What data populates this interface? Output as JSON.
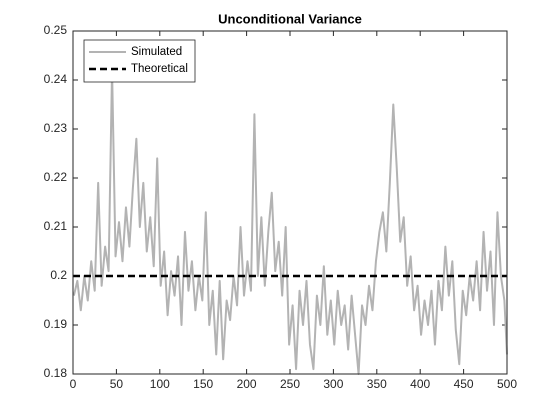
{
  "chart_data": {
    "type": "line",
    "title": "Unconditional Variance",
    "xlim": [
      0,
      500
    ],
    "ylim": [
      0.18,
      0.25
    ],
    "xticks": [
      0,
      50,
      100,
      150,
      200,
      250,
      300,
      350,
      400,
      450,
      500
    ],
    "yticks": [
      0.18,
      0.19,
      0.2,
      0.21,
      0.22,
      0.23,
      0.24,
      0.25
    ],
    "legend": "upper left",
    "series": [
      {
        "name": "Simulated",
        "color": "#b3b3b3",
        "style": "solid",
        "x": [
          1,
          5,
          9,
          13,
          17,
          21,
          25,
          29,
          33,
          37,
          41,
          45,
          49,
          53,
          57,
          61,
          65,
          69,
          73,
          77,
          81,
          85,
          89,
          93,
          97,
          101,
          105,
          109,
          113,
          117,
          121,
          125,
          129,
          133,
          137,
          141,
          145,
          149,
          153,
          157,
          161,
          165,
          169,
          173,
          177,
          181,
          185,
          189,
          193,
          197,
          201,
          205,
          209,
          213,
          217,
          221,
          225,
          229,
          233,
          237,
          241,
          245,
          249,
          253,
          257,
          261,
          265,
          269,
          273,
          277,
          281,
          285,
          289,
          293,
          297,
          301,
          305,
          309,
          313,
          317,
          321,
          325,
          329,
          333,
          337,
          341,
          345,
          349,
          353,
          357,
          361,
          365,
          369,
          373,
          377,
          381,
          385,
          389,
          393,
          397,
          401,
          405,
          409,
          413,
          417,
          421,
          425,
          429,
          433,
          437,
          441,
          445,
          449,
          453,
          457,
          461,
          465,
          469,
          473,
          477,
          481,
          485,
          489,
          493,
          497,
          500
        ],
        "values": [
          0.196,
          0.199,
          0.193,
          0.2,
          0.195,
          0.203,
          0.197,
          0.219,
          0.198,
          0.206,
          0.201,
          0.242,
          0.204,
          0.211,
          0.203,
          0.214,
          0.206,
          0.218,
          0.228,
          0.21,
          0.219,
          0.205,
          0.212,
          0.202,
          0.224,
          0.198,
          0.205,
          0.192,
          0.201,
          0.196,
          0.204,
          0.19,
          0.209,
          0.197,
          0.203,
          0.193,
          0.2,
          0.195,
          0.213,
          0.19,
          0.197,
          0.184,
          0.199,
          0.183,
          0.195,
          0.191,
          0.2,
          0.194,
          0.21,
          0.196,
          0.203,
          0.197,
          0.233,
          0.2,
          0.212,
          0.198,
          0.209,
          0.217,
          0.201,
          0.207,
          0.196,
          0.21,
          0.186,
          0.194,
          0.181,
          0.197,
          0.19,
          0.199,
          0.186,
          0.181,
          0.196,
          0.19,
          0.202,
          0.188,
          0.195,
          0.186,
          0.197,
          0.19,
          0.194,
          0.185,
          0.196,
          0.188,
          0.18,
          0.194,
          0.19,
          0.198,
          0.193,
          0.203,
          0.209,
          0.213,
          0.205,
          0.219,
          0.235,
          0.222,
          0.207,
          0.212,
          0.198,
          0.204,
          0.193,
          0.198,
          0.188,
          0.195,
          0.19,
          0.197,
          0.186,
          0.199,
          0.193,
          0.206,
          0.196,
          0.203,
          0.189,
          0.182,
          0.197,
          0.192,
          0.2,
          0.195,
          0.203,
          0.193,
          0.209,
          0.197,
          0.205,
          0.19,
          0.213,
          0.2,
          0.195,
          0.184
        ]
      },
      {
        "name": "Theoretical",
        "color": "#000000",
        "style": "dashed",
        "x": [
          0,
          500
        ],
        "values": [
          0.2,
          0.2
        ]
      }
    ]
  }
}
